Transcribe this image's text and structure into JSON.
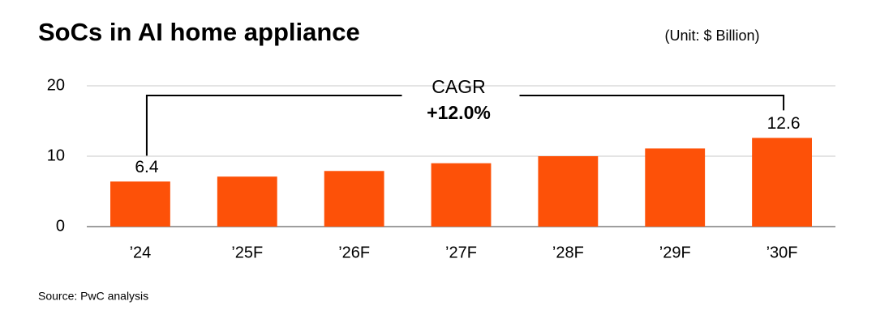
{
  "chart_data": {
    "type": "bar",
    "title": "SoCs in AI home appliance",
    "subtitle": "(Unit: $ Billion)",
    "categories": [
      "’24",
      "’25F",
      "’26F",
      "’27F",
      "’28F",
      "’29F",
      "’30F"
    ],
    "values": [
      6.4,
      7.1,
      7.9,
      9.0,
      10.0,
      11.1,
      12.6
    ],
    "value_labels": [
      "6.4",
      null,
      null,
      null,
      null,
      null,
      "12.6"
    ],
    "color": "#fd5108",
    "ylim": [
      0,
      20
    ],
    "yticks": [
      0,
      10,
      20
    ],
    "grid": true,
    "annotation": {
      "label": "CAGR",
      "value": "+12.0%"
    },
    "source": "Source: PwC analysis"
  }
}
